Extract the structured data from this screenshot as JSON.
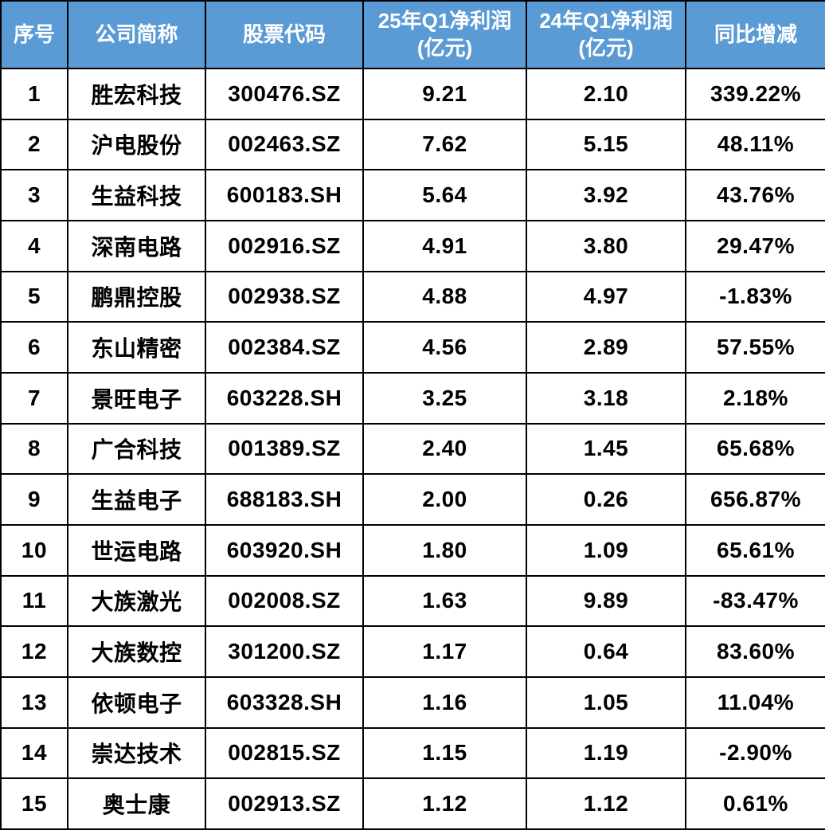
{
  "colors": {
    "header_bg": "#5b9bd5",
    "header_text": "#ffffff",
    "body_bg": "#ffffff",
    "body_text": "#000000",
    "border": "#000000"
  },
  "chart_data": {
    "type": "table",
    "columns": [
      "序号",
      "公司简称",
      "股票代码",
      "25年Q1净利润(亿元)",
      "24年Q1净利润(亿元)",
      "同比增减"
    ],
    "column_fields": [
      "index",
      "name",
      "code",
      "q1_2025",
      "q1_2024",
      "yoy"
    ],
    "rows": [
      {
        "index": "1",
        "name": "胜宏科技",
        "code": "300476.SZ",
        "q1_2025": "9.21",
        "q1_2024": "2.10",
        "yoy": "339.22%"
      },
      {
        "index": "2",
        "name": "沪电股份",
        "code": "002463.SZ",
        "q1_2025": "7.62",
        "q1_2024": "5.15",
        "yoy": "48.11%"
      },
      {
        "index": "3",
        "name": "生益科技",
        "code": "600183.SH",
        "q1_2025": "5.64",
        "q1_2024": "3.92",
        "yoy": "43.76%"
      },
      {
        "index": "4",
        "name": "深南电路",
        "code": "002916.SZ",
        "q1_2025": "4.91",
        "q1_2024": "3.80",
        "yoy": "29.47%"
      },
      {
        "index": "5",
        "name": "鹏鼎控股",
        "code": "002938.SZ",
        "q1_2025": "4.88",
        "q1_2024": "4.97",
        "yoy": "-1.83%"
      },
      {
        "index": "6",
        "name": "东山精密",
        "code": "002384.SZ",
        "q1_2025": "4.56",
        "q1_2024": "2.89",
        "yoy": "57.55%"
      },
      {
        "index": "7",
        "name": "景旺电子",
        "code": "603228.SH",
        "q1_2025": "3.25",
        "q1_2024": "3.18",
        "yoy": "2.18%"
      },
      {
        "index": "8",
        "name": "广合科技",
        "code": "001389.SZ",
        "q1_2025": "2.40",
        "q1_2024": "1.45",
        "yoy": "65.68%"
      },
      {
        "index": "9",
        "name": "生益电子",
        "code": "688183.SH",
        "q1_2025": "2.00",
        "q1_2024": "0.26",
        "yoy": "656.87%"
      },
      {
        "index": "10",
        "name": "世运电路",
        "code": "603920.SH",
        "q1_2025": "1.80",
        "q1_2024": "1.09",
        "yoy": "65.61%"
      },
      {
        "index": "11",
        "name": "大族激光",
        "code": "002008.SZ",
        "q1_2025": "1.63",
        "q1_2024": "9.89",
        "yoy": "-83.47%"
      },
      {
        "index": "12",
        "name": "大族数控",
        "code": "301200.SZ",
        "q1_2025": "1.17",
        "q1_2024": "0.64",
        "yoy": "83.60%"
      },
      {
        "index": "13",
        "name": "依顿电子",
        "code": "603328.SH",
        "q1_2025": "1.16",
        "q1_2024": "1.05",
        "yoy": "11.04%"
      },
      {
        "index": "14",
        "name": "崇达技术",
        "code": "002815.SZ",
        "q1_2025": "1.15",
        "q1_2024": "1.19",
        "yoy": "-2.90%"
      },
      {
        "index": "15",
        "name": "奥士康",
        "code": "002913.SZ",
        "q1_2025": "1.12",
        "q1_2024": "1.12",
        "yoy": "0.61%"
      }
    ]
  }
}
